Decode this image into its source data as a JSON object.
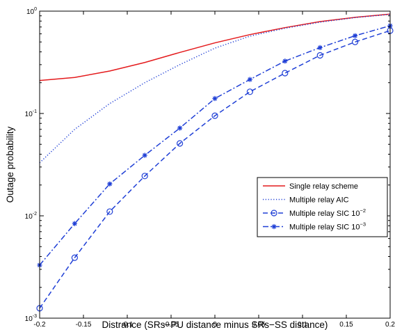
{
  "chart_data": {
    "type": "line",
    "xlabel": "Distrance (SRs−PU distance minus SRs−SS distance)",
    "ylabel": "Outage probability",
    "xlim": [
      -0.2,
      0.2
    ],
    "ylim": [
      0.001,
      1
    ],
    "yscale": "log",
    "grid": false,
    "legend_position": "lower-right",
    "x_ticks": [
      {
        "value": -0.2,
        "label": "-0.2"
      },
      {
        "value": -0.15,
        "label": "-0.15"
      },
      {
        "value": -0.1,
        "label": "-0.1"
      },
      {
        "value": -0.05,
        "label": "-0.05"
      },
      {
        "value": 0,
        "label": "0"
      },
      {
        "value": 0.05,
        "label": "0.05"
      },
      {
        "value": 0.1,
        "label": "0.1"
      },
      {
        "value": 0.15,
        "label": "0.15"
      },
      {
        "value": 0.2,
        "label": "0.2"
      }
    ],
    "y_ticks": [
      {
        "value": 0.001,
        "base": "10",
        "exp": "-3"
      },
      {
        "value": 0.01,
        "base": "10",
        "exp": "-2"
      },
      {
        "value": 0.1,
        "base": "10",
        "exp": "-1"
      },
      {
        "value": 1,
        "base": "10",
        "exp": "0"
      }
    ],
    "series": [
      {
        "name": "Single relay scheme",
        "color": "#e41a1c",
        "dash": "solid",
        "marker": "none",
        "x": [
          -0.2,
          -0.16,
          -0.12,
          -0.08,
          -0.04,
          0,
          0.04,
          0.08,
          0.12,
          0.16,
          0.2
        ],
        "y": [
          0.21,
          0.225,
          0.26,
          0.315,
          0.395,
          0.49,
          0.59,
          0.69,
          0.79,
          0.87,
          0.935
        ]
      },
      {
        "name": "Multiple relay AIC",
        "color": "#1f3fd6",
        "dash": "dotted",
        "marker": "none",
        "x": [
          -0.2,
          -0.16,
          -0.12,
          -0.08,
          -0.04,
          0,
          0.04,
          0.08,
          0.12,
          0.16,
          0.2
        ],
        "y": [
          0.033,
          0.07,
          0.125,
          0.2,
          0.3,
          0.435,
          0.57,
          0.68,
          0.78,
          0.865,
          0.93
        ]
      },
      {
        "name": "Multiple relay SIC 10",
        "name_exp": "−2",
        "color": "#1f3fd6",
        "dash": "dashed",
        "marker": "circle",
        "x": [
          -0.2,
          -0.16,
          -0.12,
          -0.08,
          -0.04,
          0,
          0.04,
          0.08,
          0.12,
          0.16,
          0.2
        ],
        "y": [
          0.00125,
          0.0039,
          0.011,
          0.0245,
          0.051,
          0.095,
          0.163,
          0.248,
          0.37,
          0.5,
          0.645
        ]
      },
      {
        "name": "Multiple relay SIC 10",
        "name_exp": "−3",
        "color": "#1f3fd6",
        "dash": "dashdot",
        "marker": "star",
        "x": [
          -0.2,
          -0.16,
          -0.12,
          -0.08,
          -0.04,
          0,
          0.04,
          0.08,
          0.12,
          0.16,
          0.2
        ],
        "y": [
          0.0033,
          0.0084,
          0.0205,
          0.039,
          0.072,
          0.14,
          0.215,
          0.325,
          0.44,
          0.575,
          0.72
        ]
      }
    ]
  }
}
